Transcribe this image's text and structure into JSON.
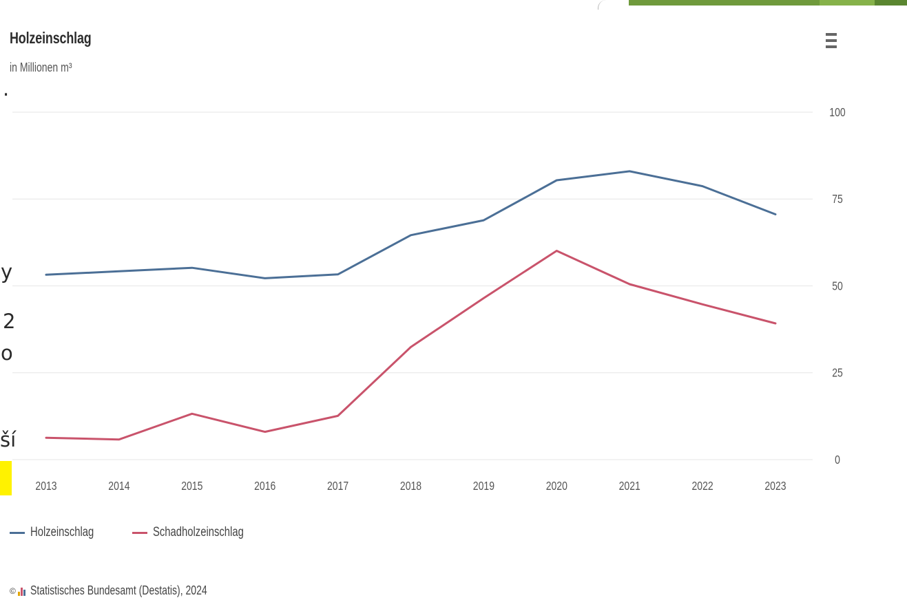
{
  "page_fragments": {
    "line1": ".",
    "line2": "y",
    "line3": "2",
    "line4": "o",
    "line5": "ší"
  },
  "chart": {
    "title": "Holzeinschlag",
    "subtitle": "in Millionen m³",
    "menu_icon": "hamburger-menu-icon",
    "credits": "Statistisches Bundesamt (Destatis), 2024",
    "copyright_symbol": "©",
    "legend": [
      {
        "label": "Holzeinschlag",
        "color": "#4b6f96"
      },
      {
        "label": "Schadholzeinschlag",
        "color": "#c9536b"
      }
    ]
  },
  "colors": {
    "accent_bar": "#6f9a3c",
    "highlight": "#fff200",
    "grid": "#e6e6e6"
  },
  "chart_data": {
    "type": "line",
    "title": "Holzeinschlag",
    "subtitle": "in Millionen m³",
    "x": [
      2013,
      2014,
      2015,
      2016,
      2017,
      2018,
      2019,
      2020,
      2021,
      2022,
      2023
    ],
    "y_ticks": [
      0,
      25,
      50,
      75,
      100
    ],
    "ylim": [
      0,
      100
    ],
    "y_axis_side": "right",
    "grid": true,
    "legend_position": "bottom-left",
    "series": [
      {
        "name": "Holzeinschlag",
        "color": "#4b6f96",
        "values": [
          53.2,
          54.2,
          55.2,
          52.2,
          53.3,
          64.6,
          68.9,
          80.4,
          83.0,
          78.7,
          70.6
        ]
      },
      {
        "name": "Schadholzeinschlag",
        "color": "#c9536b",
        "values": [
          6.3,
          5.8,
          13.2,
          8.0,
          12.6,
          32.4,
          46.5,
          60.1,
          50.5,
          44.7,
          39.2
        ]
      }
    ]
  }
}
